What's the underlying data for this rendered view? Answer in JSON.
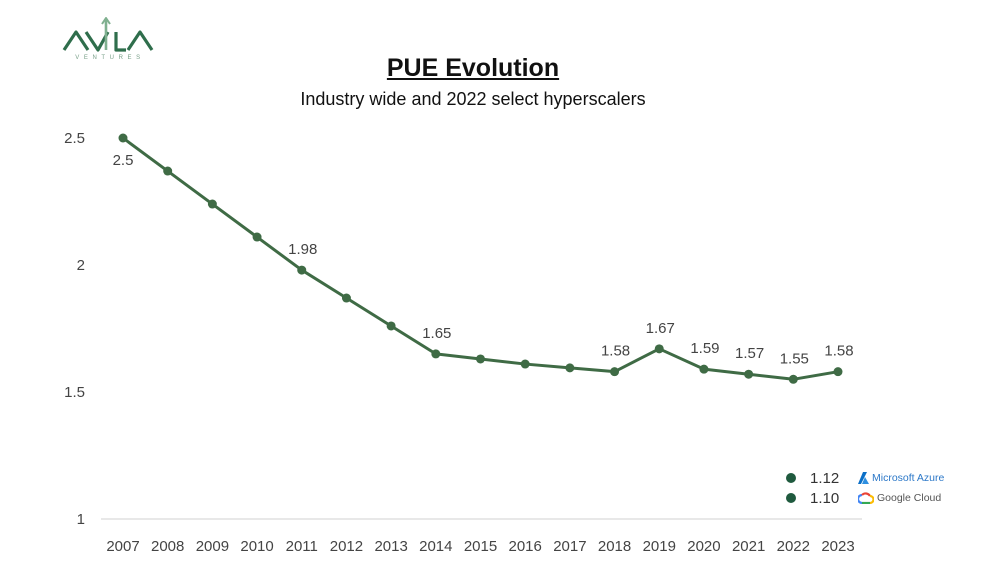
{
  "logo": {
    "name": "AVILA",
    "sub": "VENTURES"
  },
  "title": "PUE Evolution",
  "subtitle": "Industry wide and 2022 select hyperscalers",
  "colors": {
    "line": "#3f6b45",
    "point": "#3f6b45",
    "legend_dot": "#1f5a3e",
    "axis_text": "#444444"
  },
  "chart_data": {
    "type": "line",
    "title": "PUE Evolution",
    "subtitle": "Industry wide and 2022 select hyperscalers",
    "xlabel": "",
    "ylabel": "",
    "ylim": [
      1,
      2.5
    ],
    "yticks": [
      "1",
      "1.5",
      "2",
      "2.5"
    ],
    "grid": false,
    "categories": [
      "2007",
      "2008",
      "2009",
      "2010",
      "2011",
      "2012",
      "2013",
      "2014",
      "2015",
      "2016",
      "2017",
      "2018",
      "2019",
      "2020",
      "2021",
      "2022",
      "2023"
    ],
    "series": [
      {
        "values": [
          2.5,
          2.37,
          2.24,
          2.11,
          1.98,
          1.87,
          1.76,
          1.65,
          1.63,
          1.61,
          1.595,
          1.58,
          1.67,
          1.59,
          1.57,
          1.55,
          1.58
        ]
      }
    ],
    "data_labels": [
      {
        "index": 0,
        "text": "2.5"
      },
      {
        "index": 4,
        "text": "1.98"
      },
      {
        "index": 7,
        "text": "1.65"
      },
      {
        "index": 11,
        "text": "1.58"
      },
      {
        "index": 12,
        "text": "1.67"
      },
      {
        "index": 13,
        "text": "1.59"
      },
      {
        "index": 14,
        "text": "1.57"
      },
      {
        "index": 15,
        "text": "1.55"
      },
      {
        "index": 16,
        "text": "1.58"
      }
    ],
    "legend_placement": "bottom-right"
  },
  "legend": [
    {
      "value": "1.12",
      "brand": "Microsoft Azure",
      "icon": "azure-icon"
    },
    {
      "value": "1.10",
      "brand": "Google Cloud",
      "icon": "google-cloud-icon"
    }
  ]
}
